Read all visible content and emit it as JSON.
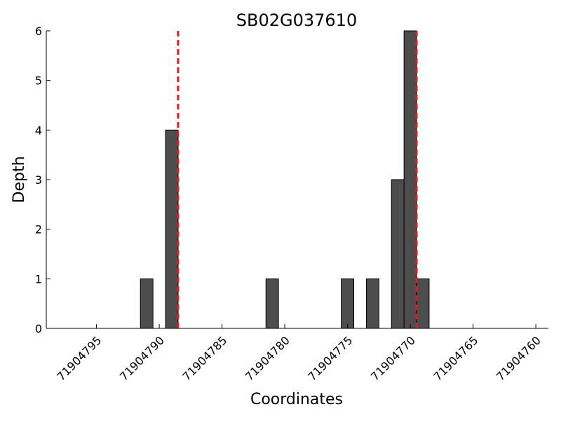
{
  "chart_data": {
    "type": "bar",
    "title": "SB02G037610",
    "xlabel": "Coordinates",
    "ylabel": "Depth",
    "x_reversed": true,
    "xlim": [
      71904799,
      71904759
    ],
    "ylim": [
      0,
      6
    ],
    "xticks": [
      71904795,
      71904790,
      71904785,
      71904780,
      71904775,
      71904770,
      71904765,
      71904760
    ],
    "yticks": [
      0,
      1,
      2,
      3,
      4,
      5,
      6
    ],
    "bar_width": 1,
    "grid": false,
    "bars": [
      {
        "x": 71904791,
        "value": 1
      },
      {
        "x": 71904789,
        "value": 4
      },
      {
        "x": 71904781,
        "value": 1
      },
      {
        "x": 71904775,
        "value": 1
      },
      {
        "x": 71904773,
        "value": 1
      },
      {
        "x": 71904771,
        "value": 3
      },
      {
        "x": 71904770,
        "value": 6
      },
      {
        "x": 71904769,
        "value": 1
      }
    ],
    "markers": [
      {
        "x": 71904788.5,
        "color": "#e41a1c",
        "style": "dashed"
      },
      {
        "x": 71904769.5,
        "color": "#e41a1c",
        "style": "dashed"
      }
    ],
    "bar_color": "#4d4d4d"
  }
}
